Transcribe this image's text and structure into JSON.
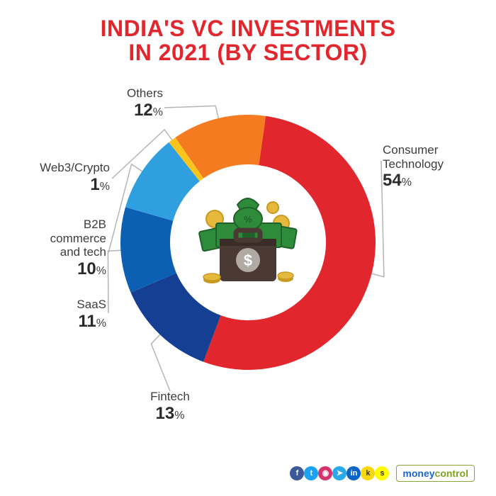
{
  "title": {
    "line1": "INDIA'S VC INVESTMENTS",
    "line2": "IN 2021 (BY SECTOR)",
    "color": "#e1272d",
    "fontsize": 32
  },
  "chart": {
    "type": "donut",
    "background_color": "#ffffff",
    "outer_radius": 180,
    "inner_radius": 110,
    "start_angle_deg": -82,
    "slices": [
      {
        "label": "Consumer Technology",
        "value": 54,
        "color": "#e1272d"
      },
      {
        "label": "Fintech",
        "value": 13,
        "color": "#143f92"
      },
      {
        "label": "SaaS",
        "value": 11,
        "color": "#0d5fb3"
      },
      {
        "label": "B2B commerce and tech",
        "value": 10,
        "color": "#2f9fe0"
      },
      {
        "label": "Web3/Crypto",
        "value": 1,
        "color": "#f9c51d"
      },
      {
        "label": "Others",
        "value": 12,
        "color": "#f47b20"
      }
    ],
    "label_fontsize": 17,
    "value_fontsize": 24,
    "leader_color": "#b5b5b5"
  },
  "center_illustration": {
    "briefcase_color": "#4a3a33",
    "cash_color": "#2e8b3a",
    "cash_dark": "#1f6128",
    "coin_color": "#e5b93c",
    "coin_dark": "#c89a22",
    "badge_color": "#b0a9a4"
  },
  "footer": {
    "social": [
      {
        "name": "facebook",
        "glyph": "f",
        "bg": "#3b5998"
      },
      {
        "name": "twitter",
        "glyph": "t",
        "bg": "#1da1f2"
      },
      {
        "name": "instagram",
        "glyph": "◉",
        "bg": "#d6336c"
      },
      {
        "name": "telegram",
        "glyph": "➤",
        "bg": "#29a9ea"
      },
      {
        "name": "linkedin",
        "glyph": "in",
        "bg": "#0a66c2"
      },
      {
        "name": "koo",
        "glyph": "k",
        "bg": "#f8d90f"
      },
      {
        "name": "snapchat",
        "glyph": "s",
        "bg": "#fffc00"
      }
    ],
    "brand_part1": "money",
    "brand_part2": "control"
  }
}
